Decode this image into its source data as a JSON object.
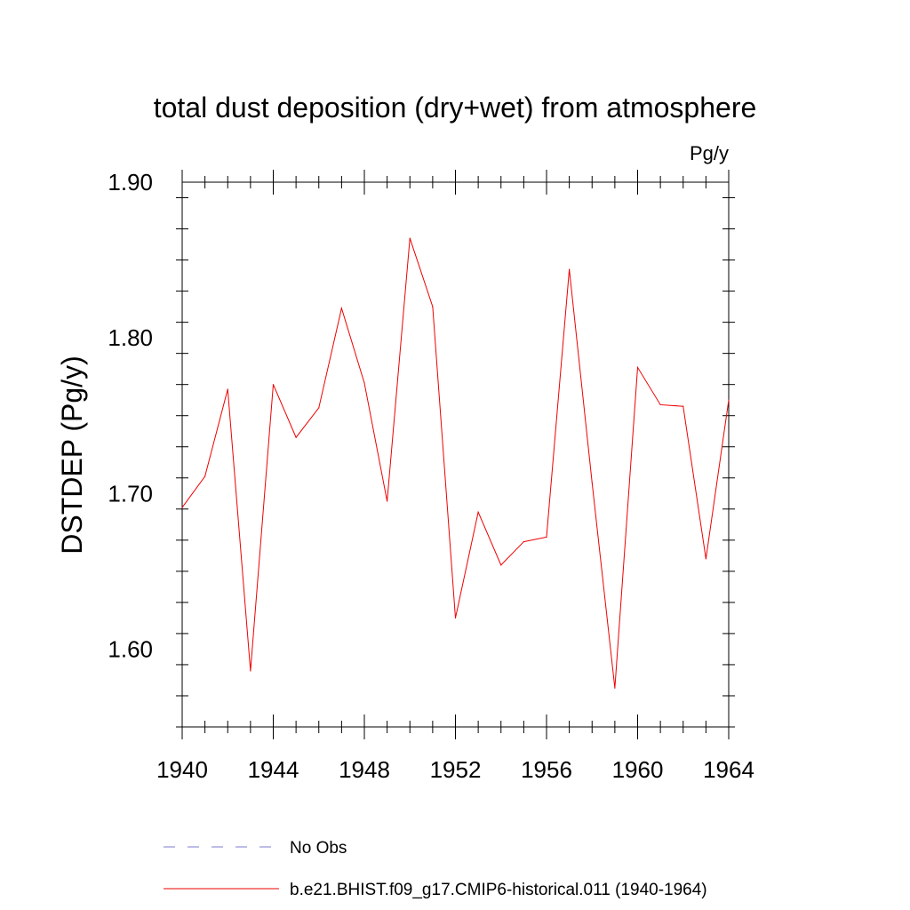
{
  "chart_data": {
    "type": "line",
    "title": "total dust deposition (dry+wet) from atmosphere",
    "units_label": "Pg/y",
    "ylabel": "DSTDEP  (Pg/y)",
    "xlabel": "",
    "xlim": [
      1940,
      1964
    ],
    "ylim": [
      1.55,
      1.9
    ],
    "x_ticks": [
      1940,
      1944,
      1948,
      1952,
      1956,
      1960,
      1964
    ],
    "x_tick_labels": [
      "1940",
      "1944",
      "1948",
      "1952",
      "1956",
      "1960",
      "1964"
    ],
    "y_ticks": [
      1.6,
      1.7,
      1.8,
      1.9
    ],
    "y_tick_labels": [
      "1.60",
      "1.70",
      "1.80",
      "1.90"
    ],
    "grid": false,
    "legend_position": "bottom",
    "series": [
      {
        "name": "No Obs",
        "color": "#7b7bd0",
        "style": "dashed",
        "x": [],
        "values": []
      },
      {
        "name": "b.e21.BHIST.f09_g17.CMIP6-historical.011 (1940-1964)",
        "color": "#ee0000",
        "style": "solid",
        "x": [
          1940,
          1941,
          1942,
          1943,
          1944,
          1945,
          1946,
          1947,
          1948,
          1949,
          1950,
          1951,
          1952,
          1953,
          1954,
          1955,
          1956,
          1957,
          1958,
          1959,
          1960,
          1961,
          1962,
          1963,
          1964
        ],
        "values": [
          1.691,
          1.711,
          1.767,
          1.586,
          1.77,
          1.736,
          1.755,
          1.819,
          1.771,
          1.695,
          1.864,
          1.82,
          1.62,
          1.688,
          1.654,
          1.669,
          1.672,
          1.844,
          1.707,
          1.575,
          1.781,
          1.757,
          1.756,
          1.658,
          1.76
        ]
      }
    ]
  }
}
